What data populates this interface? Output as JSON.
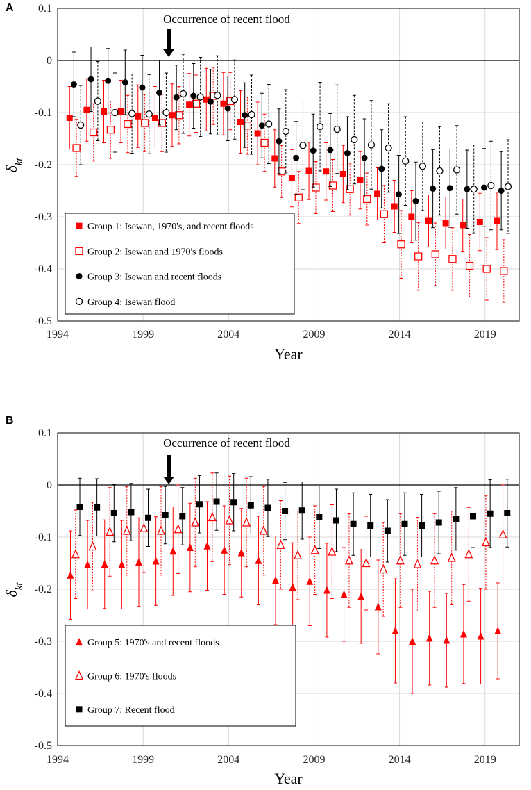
{
  "chart_data": [
    {
      "panel": "A",
      "type": "scatter",
      "title": "",
      "xlabel": "Year",
      "ylabel": "δkt",
      "ylabel_main": "δ",
      "ylabel_sub": "kt",
      "xlim": [
        1994,
        2021
      ],
      "ylim": [
        -0.5,
        0.1
      ],
      "xticks": [
        "1994",
        "1999",
        "2004",
        "2009",
        "2014",
        "2019"
      ],
      "xtick_values": [
        1994,
        1999,
        2004,
        2009,
        2014,
        2019
      ],
      "yticks": [
        "0.1",
        "0",
        "-0.1",
        "-0.2",
        "-0.3",
        "-0.4",
        "-0.5"
      ],
      "ytick_values": [
        0.1,
        0,
        -0.1,
        -0.2,
        -0.3,
        -0.4,
        -0.5
      ],
      "annotation": {
        "text": "Occurrence of recent flood",
        "year": 2000.5
      },
      "legend_position": "bottom-left",
      "series": [
        {
          "name": "Group 1: Isewan, 1970's, and recent floods",
          "marker": "filled-square",
          "color": "#ff0000",
          "line": "solid",
          "offset": -0.3,
          "values": [
            -0.11,
            -0.095,
            -0.098,
            -0.098,
            -0.107,
            -0.11,
            -0.105,
            -0.085,
            -0.075,
            -0.083,
            -0.118,
            -0.14,
            -0.188,
            -0.226,
            -0.212,
            -0.213,
            -0.218,
            -0.23,
            -0.256,
            -0.28,
            -0.3,
            -0.308,
            -0.312,
            -0.316,
            -0.31,
            -0.308
          ],
          "errors": [
            0.06,
            0.06,
            0.06,
            0.06,
            0.06,
            0.06,
            0.06,
            0.06,
            0.06,
            0.06,
            0.06,
            0.06,
            0.055,
            0.055,
            0.055,
            0.055,
            0.055,
            0.055,
            0.05,
            0.05,
            0.05,
            0.05,
            0.05,
            0.05,
            0.055,
            0.055
          ]
        },
        {
          "name": "Group 2: Isewan and 1970's floods",
          "marker": "open-square",
          "color": "#ff0000",
          "line": "dotted",
          "offset": 0.1,
          "values": [
            -0.168,
            -0.138,
            -0.133,
            -0.122,
            -0.12,
            -0.12,
            -0.105,
            -0.083,
            -0.068,
            -0.078,
            -0.125,
            -0.158,
            -0.213,
            -0.263,
            -0.244,
            -0.24,
            -0.247,
            -0.266,
            -0.295,
            -0.353,
            -0.376,
            -0.372,
            -0.381,
            -0.394,
            -0.4,
            -0.404
          ],
          "errors": [
            0.055,
            0.055,
            0.055,
            0.055,
            0.055,
            0.055,
            0.055,
            0.055,
            0.055,
            0.055,
            0.055,
            0.055,
            0.05,
            0.05,
            0.05,
            0.05,
            0.05,
            0.05,
            0.055,
            0.065,
            0.065,
            0.06,
            0.06,
            0.06,
            0.06,
            0.06
          ]
        },
        {
          "name": "Group 3: Isewan and recent floods",
          "marker": "filled-circle",
          "color": "#000000",
          "line": "solid",
          "offset": -0.05,
          "values": [
            -0.046,
            -0.036,
            -0.039,
            -0.042,
            -0.052,
            -0.062,
            -0.071,
            -0.068,
            -0.079,
            -0.092,
            -0.105,
            -0.125,
            -0.155,
            -0.187,
            -0.173,
            -0.172,
            -0.178,
            -0.187,
            -0.208,
            -0.257,
            -0.27,
            -0.246,
            -0.245,
            -0.247,
            -0.244,
            -0.25
          ],
          "errors": [
            0.062,
            0.062,
            0.062,
            0.062,
            0.062,
            0.062,
            0.062,
            0.062,
            0.062,
            0.062,
            0.062,
            0.062,
            0.062,
            0.07,
            0.07,
            0.07,
            0.07,
            0.075,
            0.075,
            0.075,
            0.075,
            0.075,
            0.075,
            0.075,
            0.075,
            0.075
          ]
        },
        {
          "name": "Group 4: Isewan flood",
          "marker": "open-circle",
          "color": "#000000",
          "line": "dashed",
          "offset": 0.35,
          "values": [
            -0.124,
            -0.078,
            -0.1,
            -0.102,
            -0.103,
            -0.1,
            -0.064,
            -0.07,
            -0.067,
            -0.075,
            -0.104,
            -0.122,
            -0.136,
            -0.163,
            -0.127,
            -0.132,
            -0.152,
            -0.162,
            -0.168,
            -0.193,
            -0.203,
            -0.212,
            -0.21,
            -0.247,
            -0.24,
            -0.242
          ],
          "errors": [
            0.076,
            0.076,
            0.076,
            0.076,
            0.076,
            0.076,
            0.076,
            0.076,
            0.076,
            0.076,
            0.076,
            0.076,
            0.08,
            0.085,
            0.085,
            0.085,
            0.085,
            0.085,
            0.085,
            0.085,
            0.085,
            0.085,
            0.085,
            0.085,
            0.085,
            0.09
          ]
        }
      ]
    },
    {
      "panel": "B",
      "type": "scatter",
      "title": "",
      "xlabel": "Year",
      "ylabel": "δkt",
      "ylabel_main": "δ",
      "ylabel_sub": "kt",
      "xlim": [
        1994,
        2021
      ],
      "ylim": [
        -0.5,
        0.1
      ],
      "xticks": [
        "1994",
        "1999",
        "2004",
        "2009",
        "2014",
        "2019"
      ],
      "xtick_values": [
        1994,
        1999,
        2004,
        2009,
        2014,
        2019
      ],
      "yticks": [
        "0.1",
        "0",
        "-0.1",
        "-0.2",
        "-0.3",
        "-0.4",
        "-0.5"
      ],
      "ytick_values": [
        0.1,
        0,
        -0.1,
        -0.2,
        -0.3,
        -0.4,
        -0.5
      ],
      "annotation": {
        "text": "Occurrence of recent flood",
        "year": 2000.5
      },
      "legend_position": "bottom-left",
      "series": [
        {
          "name": "Group 5: 1970's and recent floods",
          "marker": "filled-triangle",
          "color": "#ff0000",
          "line": "solid",
          "offset": -0.25,
          "values": [
            -0.173,
            -0.153,
            -0.152,
            -0.153,
            -0.148,
            -0.146,
            -0.127,
            -0.12,
            -0.117,
            -0.125,
            -0.13,
            -0.145,
            -0.183,
            -0.196,
            -0.185,
            -0.202,
            -0.21,
            -0.214,
            -0.234,
            -0.28,
            -0.3,
            -0.294,
            -0.298,
            -0.286,
            -0.29,
            -0.28
          ],
          "errors": [
            0.085,
            0.085,
            0.085,
            0.085,
            0.085,
            0.085,
            0.085,
            0.085,
            0.085,
            0.085,
            0.085,
            0.085,
            0.085,
            0.085,
            0.085,
            0.09,
            0.09,
            0.09,
            0.09,
            0.1,
            0.1,
            0.09,
            0.09,
            0.095,
            0.092,
            0.092
          ]
        },
        {
          "name": "Group 6: 1970's floods",
          "marker": "open-triangle",
          "color": "#ff0000",
          "line": "dotted",
          "offset": 0.05,
          "values": [
            -0.133,
            -0.118,
            -0.09,
            -0.088,
            -0.083,
            -0.088,
            -0.085,
            -0.072,
            -0.062,
            -0.068,
            -0.072,
            -0.088,
            -0.115,
            -0.135,
            -0.125,
            -0.128,
            -0.145,
            -0.15,
            -0.162,
            -0.145,
            -0.152,
            -0.145,
            -0.14,
            -0.133,
            -0.11,
            -0.095
          ],
          "errors": [
            0.085,
            0.085,
            0.085,
            0.085,
            0.085,
            0.085,
            0.085,
            0.085,
            0.085,
            0.085,
            0.085,
            0.085,
            0.085,
            0.085,
            0.085,
            0.09,
            0.09,
            0.09,
            0.09,
            0.09,
            0.09,
            0.09,
            0.09,
            0.09,
            0.09,
            0.095
          ]
        },
        {
          "name": "Group 7: Recent flood",
          "marker": "filled-square",
          "color": "#000000",
          "line": "solid",
          "offset": 0.3,
          "values": [
            -0.042,
            -0.043,
            -0.054,
            -0.052,
            -0.063,
            -0.058,
            -0.06,
            -0.037,
            -0.032,
            -0.033,
            -0.039,
            -0.044,
            -0.05,
            -0.049,
            -0.062,
            -0.068,
            -0.075,
            -0.078,
            -0.088,
            -0.075,
            -0.078,
            -0.072,
            -0.065,
            -0.06,
            -0.055,
            -0.054
          ],
          "errors": [
            0.055,
            0.055,
            0.055,
            0.055,
            0.055,
            0.055,
            0.055,
            0.055,
            0.055,
            0.055,
            0.055,
            0.055,
            0.055,
            0.055,
            0.06,
            0.06,
            0.06,
            0.06,
            0.06,
            0.06,
            0.06,
            0.06,
            0.06,
            0.06,
            0.065,
            0.065
          ]
        }
      ]
    }
  ]
}
